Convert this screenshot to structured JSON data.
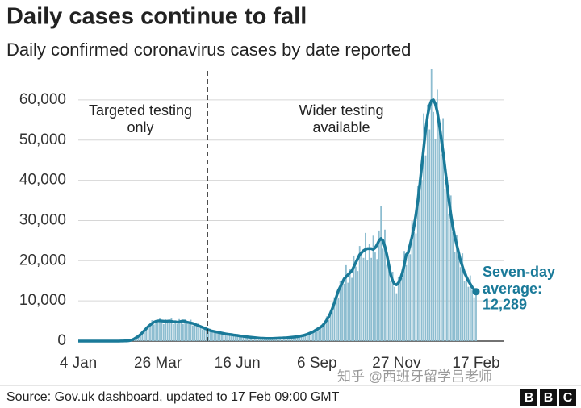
{
  "title": "Daily cases continue to fall",
  "subtitle": "Daily confirmed coronavirus cases by date reported",
  "source": "Source: Gov.uk dashboard, updated to 17 Feb 09:00 GMT",
  "logo": [
    "B",
    "B",
    "C"
  ],
  "watermark": "知乎 @西班牙留学吕老师",
  "chart_data": {
    "type": "bar",
    "annotations": [
      [
        "Targeted testing",
        "only"
      ],
      [
        "Wider testing",
        "available"
      ],
      [
        "Seven-day",
        "average:"
      ]
    ],
    "categories": [
      "4 Jan",
      null,
      null,
      null,
      null,
      null,
      null,
      null,
      null,
      null,
      null,
      null,
      null,
      null,
      null,
      null,
      null,
      null,
      null,
      null,
      null,
      null,
      null,
      null,
      null,
      null,
      null,
      null,
      null,
      null,
      null,
      null,
      null,
      null,
      null,
      null,
      null,
      null,
      null,
      null,
      null,
      "26 Mar",
      null,
      null,
      null,
      null,
      null,
      null,
      null,
      null,
      null,
      null,
      null,
      null,
      null,
      null,
      null,
      null,
      null,
      null,
      null,
      null,
      null,
      null,
      null,
      null,
      null,
      null,
      null,
      null,
      null,
      null,
      null,
      null,
      null,
      null,
      null,
      null,
      null,
      null,
      null,
      null,
      "16 Jun",
      null,
      null,
      null,
      null,
      null,
      null,
      null,
      null,
      null,
      null,
      null,
      null,
      null,
      null,
      null,
      null,
      null,
      null,
      null,
      null,
      null,
      null,
      null,
      null,
      null,
      null,
      null,
      null,
      null,
      null,
      null,
      null,
      null,
      null,
      null,
      null,
      null,
      null,
      null,
      null,
      "6 Sep",
      null,
      null,
      null,
      null,
      null,
      null,
      null,
      null,
      null,
      null,
      null,
      null,
      null,
      null,
      null,
      null,
      null,
      null,
      null,
      null,
      null,
      null,
      null,
      null,
      null,
      null,
      null,
      null,
      null,
      null,
      null,
      null,
      null,
      null,
      null,
      null,
      null,
      null,
      null,
      null,
      "27 Nov",
      null,
      null,
      null,
      null,
      null,
      null,
      null,
      null,
      null,
      null,
      null,
      null,
      null,
      null,
      null,
      null,
      null,
      null,
      null,
      null,
      null,
      null,
      null,
      null,
      null,
      null,
      null,
      null,
      null,
      null,
      null,
      null,
      null,
      null,
      null,
      null,
      null,
      null,
      null,
      null,
      "17 Feb"
    ],
    "series": [
      {
        "type": "bar",
        "color": "#8dbdd0",
        "values": [
          0,
          0,
          0,
          0,
          0,
          0,
          0,
          0,
          0,
          0,
          0,
          0,
          0,
          0,
          0,
          0,
          0,
          0,
          0,
          0,
          5,
          9,
          17,
          24,
          34,
          66,
          100,
          184,
          413,
          528,
          945,
          1080,
          1840,
          1995,
          2210,
          3410,
          3600,
          3680,
          5192,
          4136,
          5145,
          4500,
          5808,
          4750,
          4208,
          5390,
          4950,
          4600,
          5782,
          4224,
          5040,
          4230,
          5463,
          4655,
          4250,
          5390,
          4700,
          4232,
          5310,
          3872,
          4410,
          3600,
          4370,
          3420,
          2890,
          3520,
          3000,
          2576,
          3068,
          2200,
          2520,
          2070,
          2530,
          1995,
          1700,
          2090,
          1800,
          1564,
          1947,
          1408,
          1575,
          1305,
          1610,
          1235,
          1063,
          1320,
          1100,
          966,
          1180,
          836,
          945,
          765,
          920,
          713,
          595,
          770,
          680,
          598,
          767,
          572,
          683,
          612,
          805,
          684,
          638,
          825,
          800,
          736,
          1003,
          792,
          998,
          900,
          1208,
          1045,
          1020,
          1430,
          1400,
          1426,
          2006,
          1672,
          2205,
          2070,
          2990,
          2755,
          2720,
          3850,
          3900,
          4140,
          6136,
          5280,
          7350,
          7380,
          10925,
          10450,
          10625,
          14850,
          14500,
          14260,
          18880,
          14520,
          17850,
          15750,
          21275,
          18525,
          17425,
          23650,
          22000,
          20700,
          26904,
          20240,
          24150,
          20700,
          26220,
          22040,
          20400,
          27500,
          33500,
          23000,
          27730,
          18920,
          19950,
          14850,
          17250,
          13490,
          11900,
          15950,
          15500,
          15640,
          22420,
          18920,
          23100,
          21600,
          29900,
          27075,
          26775,
          38500,
          39000,
          40020,
          56640,
          46200,
          58800,
          52650,
          67700,
          57000,
          50150,
          62700,
          54000,
          46460,
          55460,
          37840,
          40950,
          31500,
          36225,
          27075,
          22100,
          26400,
          22000,
          18400,
          21830,
          14960,
          16800,
          13500,
          16330,
          12730,
          10880,
          13000
        ]
      },
      {
        "type": "line",
        "color": "#1a7a99",
        "values": [
          0,
          0,
          0,
          0,
          0,
          0,
          0,
          0,
          0,
          0,
          0,
          0,
          0,
          0,
          0,
          0,
          0,
          0,
          0,
          0,
          5,
          10,
          15,
          25,
          40,
          60,
          100,
          200,
          350,
          600,
          900,
          1200,
          1600,
          2100,
          2600,
          3100,
          3600,
          4000,
          4400,
          4700,
          4900,
          5000,
          5050,
          5000,
          4950,
          4900,
          4950,
          5000,
          4900,
          4800,
          4800,
          4700,
          4750,
          4900,
          5000,
          4900,
          4700,
          4600,
          4500,
          4400,
          4200,
          4000,
          3800,
          3600,
          3400,
          3200,
          3000,
          2800,
          2600,
          2500,
          2400,
          2300,
          2200,
          2100,
          2000,
          1900,
          1800,
          1700,
          1650,
          1600,
          1500,
          1450,
          1400,
          1300,
          1250,
          1200,
          1100,
          1050,
          1000,
          950,
          900,
          850,
          800,
          750,
          700,
          700,
          680,
          650,
          650,
          650,
          650,
          680,
          700,
          720,
          750,
          750,
          800,
          800,
          850,
          900,
          950,
          1000,
          1050,
          1100,
          1200,
          1300,
          1400,
          1550,
          1700,
          1900,
          2100,
          2300,
          2600,
          2900,
          3200,
          3500,
          3900,
          4500,
          5200,
          6000,
          7000,
          8200,
          9500,
          11000,
          12500,
          13500,
          14500,
          15500,
          16000,
          16500,
          17000,
          17500,
          18500,
          19500,
          20500,
          21500,
          22000,
          22500,
          22800,
          23000,
          23000,
          23000,
          22800,
          23200,
          24000,
          25000,
          25500,
          25000,
          23500,
          21500,
          19000,
          16500,
          15000,
          14200,
          14000,
          14500,
          15500,
          17000,
          19000,
          21500,
          22000,
          24000,
          26000,
          28500,
          31500,
          35000,
          39000,
          43500,
          48000,
          52500,
          56000,
          58500,
          59800,
          60000,
          59000,
          57000,
          54000,
          50500,
          47000,
          43000,
          39000,
          35000,
          31500,
          28500,
          26000,
          24000,
          22000,
          20000,
          18500,
          17000,
          16000,
          15000,
          14200,
          13400,
          12800,
          12289
        ],
        "value_labels": [
          null,
          null,
          null,
          null,
          null,
          null,
          null,
          null,
          null,
          null,
          null,
          null,
          null,
          null,
          null,
          null,
          null,
          null,
          null,
          null,
          null,
          null,
          null,
          null,
          null,
          null,
          null,
          null,
          null,
          null,
          null,
          null,
          null,
          null,
          null,
          null,
          null,
          null,
          null,
          null,
          null,
          null,
          null,
          null,
          null,
          null,
          null,
          null,
          null,
          null,
          null,
          null,
          null,
          null,
          null,
          null,
          null,
          null,
          null,
          null,
          null,
          null,
          null,
          null,
          null,
          null,
          null,
          null,
          null,
          null,
          null,
          null,
          null,
          null,
          null,
          null,
          null,
          null,
          null,
          null,
          null,
          null,
          null,
          null,
          null,
          null,
          null,
          null,
          null,
          null,
          null,
          null,
          null,
          null,
          null,
          null,
          null,
          null,
          null,
          null,
          null,
          null,
          null,
          null,
          null,
          null,
          null,
          null,
          null,
          null,
          null,
          null,
          null,
          null,
          null,
          null,
          null,
          null,
          null,
          null,
          null,
          null,
          null,
          null,
          null,
          null,
          null,
          null,
          null,
          null,
          null,
          null,
          null,
          null,
          null,
          null,
          null,
          null,
          null,
          null,
          null,
          null,
          null,
          null,
          null,
          null,
          null,
          null,
          null,
          null,
          null,
          null,
          null,
          null,
          null,
          null,
          null,
          null,
          null,
          null,
          null,
          null,
          null,
          null,
          null,
          null,
          null,
          null,
          null,
          null,
          null,
          null,
          null,
          null,
          null,
          null,
          null,
          null,
          null,
          null,
          null,
          null,
          null,
          null,
          null,
          null,
          null,
          null,
          null,
          null,
          null,
          null,
          null,
          null,
          null,
          null,
          null,
          null,
          null,
          null,
          null,
          null,
          null,
          null,
          null,
          "12,289"
        ]
      }
    ],
    "ylim": [
      0,
      68000
    ],
    "yticks": [
      0,
      {
        "value": 10000,
        "label": "10,000"
      },
      {
        "value": 20000,
        "label": "20,000"
      },
      {
        "value": 30000,
        "label": "30,000"
      },
      {
        "value": 40000,
        "label": "40,000"
      },
      {
        "value": 50000,
        "label": "50,000"
      },
      {
        "value": 60000,
        "label": "60,000"
      }
    ],
    "grid": true
  }
}
